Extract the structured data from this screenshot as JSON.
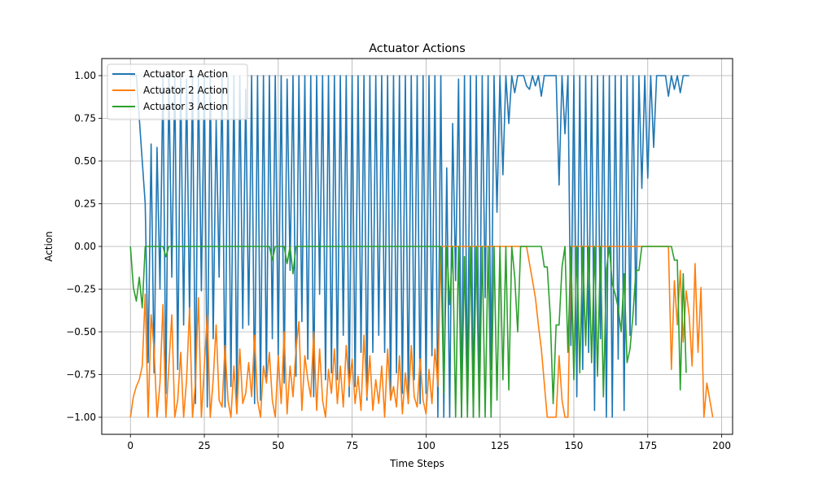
{
  "chart_data": {
    "type": "line",
    "title": "Actuator Actions",
    "xlabel": "Time Steps",
    "ylabel": "Action",
    "xlim": [
      -9.7,
      203.7
    ],
    "ylim": [
      -1.1,
      1.1
    ],
    "xticks": [
      0,
      25,
      50,
      75,
      100,
      125,
      150,
      175,
      200
    ],
    "yticks": [
      -1.0,
      -0.75,
      -0.5,
      -0.25,
      0.0,
      0.25,
      0.5,
      0.75,
      1.0
    ],
    "xtick_labels": [
      "0",
      "25",
      "50",
      "75",
      "100",
      "125",
      "150",
      "175",
      "200"
    ],
    "ytick_labels": [
      "−1.00",
      "−0.75",
      "−0.50",
      "−0.25",
      "0.00",
      "0.25",
      "0.50",
      "0.75",
      "1.00"
    ],
    "grid": true,
    "legend_position": "upper-left",
    "series": [
      {
        "name": "Actuator 1 Action",
        "color": "#1f77b4",
        "values": [
          1.0,
          1.0,
          1.0,
          0.75,
          0.5,
          0.25,
          -0.68,
          0.6,
          -0.74,
          0.58,
          -0.25,
          1.0,
          -0.86,
          1.0,
          -0.18,
          1.0,
          -0.72,
          1.0,
          -0.46,
          0.98,
          -0.42,
          1.0,
          -0.92,
          1.0,
          -0.26,
          1.0,
          -0.94,
          1.0,
          -0.54,
          0.74,
          -0.18,
          1.0,
          -0.94,
          1.0,
          -0.82,
          1.0,
          -0.94,
          1.0,
          -0.48,
          0.92,
          -0.46,
          1.0,
          -0.92,
          1.0,
          -0.9,
          1.0,
          -0.78,
          1.0,
          -0.54,
          1.0,
          -0.66,
          1.0,
          -0.8,
          0.98,
          -0.14,
          1.0,
          -0.76,
          1.0,
          -0.44,
          1.0,
          -0.66,
          1.0,
          -0.88,
          1.0,
          -0.28,
          1.0,
          -0.78,
          1.0,
          -0.74,
          1.0,
          -0.78,
          1.0,
          -0.52,
          1.0,
          -0.88,
          1.0,
          -0.82,
          1.0,
          -0.62,
          1.0,
          -0.9,
          1.0,
          -0.62,
          1.0,
          -0.52,
          1.0,
          -0.62,
          1.0,
          -0.9,
          1.0,
          -0.74,
          1.0,
          -0.86,
          1.0,
          -0.92,
          1.0,
          -0.78,
          1.0,
          -0.92,
          1.0,
          -0.86,
          1.0,
          -0.64,
          1.0,
          -1.0,
          1.0,
          -1.0,
          0.46,
          -1.0,
          0.72,
          -0.2,
          0.98,
          -1.0,
          1.0,
          -0.92,
          1.0,
          -1.0,
          1.0,
          -0.96,
          1.0,
          -0.3,
          1.0,
          -0.72,
          1.0,
          0.2,
          1.0,
          0.42,
          1.0,
          0.72,
          1.0,
          0.9,
          1.0,
          1.0,
          1.0,
          0.94,
          0.92,
          1.0,
          0.94,
          1.0,
          0.88,
          1.0,
          1.0,
          1.0,
          1.0,
          1.0,
          0.36,
          1.0,
          0.66,
          1.0,
          -0.58,
          1.0,
          -0.88,
          1.0,
          -0.72,
          1.0,
          -0.62,
          1.0,
          -0.96,
          1.0,
          -0.54,
          1.0,
          -1.0,
          1.0,
          -1.0,
          1.0,
          -0.66,
          1.0,
          -0.96,
          1.0,
          -0.52,
          1.0,
          -0.46,
          1.0,
          0.34,
          1.0,
          0.4,
          1.0,
          0.58,
          1.0,
          1.0,
          1.0,
          1.0,
          0.88,
          1.0,
          0.92,
          1.0,
          0.9,
          1.0,
          1.0,
          1.0
        ]
      },
      {
        "name": "Actuator 2 Action",
        "color": "#ff7f0e",
        "values": [
          -1.0,
          -0.88,
          -0.82,
          -0.78,
          -0.7,
          -0.28,
          -1.0,
          -0.4,
          -0.6,
          -1.0,
          -0.8,
          -0.34,
          -1.0,
          -0.7,
          -0.4,
          -1.0,
          -0.9,
          -0.62,
          -1.0,
          -0.78,
          -0.36,
          -1.0,
          -0.8,
          -0.3,
          -1.0,
          -0.7,
          -0.4,
          -1.0,
          -0.78,
          -0.46,
          -0.9,
          -0.94,
          -0.58,
          -0.9,
          -1.0,
          -0.7,
          -0.98,
          -0.6,
          -0.92,
          -0.86,
          -0.68,
          -0.88,
          -0.52,
          -0.9,
          -1.0,
          -0.7,
          -0.8,
          -0.62,
          -0.9,
          -1.0,
          -0.64,
          -0.92,
          -0.5,
          -0.98,
          -0.7,
          -0.88,
          -0.6,
          -0.44,
          -0.96,
          -0.64,
          -0.78,
          -0.88,
          -0.5,
          -0.96,
          -0.6,
          -0.9,
          -1.0,
          -0.72,
          -0.86,
          -0.6,
          -0.92,
          -0.7,
          -0.94,
          -0.58,
          -0.82,
          -0.66,
          -0.92,
          -0.76,
          -0.96,
          -0.52,
          -0.88,
          -0.64,
          -0.96,
          -0.78,
          -0.92,
          -0.7,
          -1.0,
          -0.6,
          -0.9,
          -0.82,
          -0.94,
          -0.64,
          -0.98,
          -0.74,
          -0.92,
          -0.58,
          -0.88,
          -0.94,
          -0.66,
          -0.9,
          -0.98,
          -0.72,
          -0.92,
          -0.6,
          -0.82,
          0.0,
          0.0,
          0.0,
          0.0,
          0.0,
          0.0,
          0.0,
          0.0,
          0.0,
          0.0,
          0.0,
          0.0,
          0.0,
          0.0,
          0.0,
          0.0,
          0.0,
          0.0,
          0.0,
          0.0,
          0.0,
          0.0,
          0.0,
          0.0,
          0.0,
          0.0,
          0.0,
          0.0,
          0.0,
          0.0,
          -0.1,
          -0.2,
          -0.3,
          -0.46,
          -0.6,
          -0.8,
          -1.0,
          -1.0,
          -1.0,
          -1.0,
          -0.64,
          -0.9,
          -1.0,
          -1.0,
          0.0,
          0.0,
          0.0,
          0.0,
          0.0,
          0.0,
          0.0,
          0.0,
          0.0,
          0.0,
          0.0,
          0.0,
          0.0,
          0.0,
          0.0,
          0.0,
          0.0,
          0.0,
          0.0,
          0.0,
          0.0,
          0.0,
          0.0,
          0.0,
          0.0,
          0.0,
          0.0,
          0.0,
          0.0,
          0.0,
          0.0,
          0.0,
          0.0,
          0.0,
          -0.72,
          -0.2,
          -0.46,
          -0.14,
          -0.56,
          -0.26,
          -0.4,
          -0.7,
          -0.1,
          -0.62,
          -0.24,
          -1.0,
          -0.8,
          -0.9,
          -1.0
        ]
      },
      {
        "name": "Actuator 3 Action",
        "color": "#2ca02c",
        "values": [
          0.0,
          -0.24,
          -0.32,
          -0.18,
          -0.36,
          0.0,
          0.0,
          0.0,
          0.0,
          0.0,
          0.0,
          0.0,
          -0.06,
          0.0,
          0.0,
          0.0,
          0.0,
          0.0,
          0.0,
          0.0,
          0.0,
          0.0,
          0.0,
          0.0,
          0.0,
          0.0,
          0.0,
          0.0,
          0.0,
          0.0,
          0.0,
          0.0,
          0.0,
          0.0,
          0.0,
          0.0,
          0.0,
          0.0,
          0.0,
          0.0,
          0.0,
          0.0,
          0.0,
          0.0,
          0.0,
          0.0,
          0.0,
          0.0,
          -0.08,
          0.0,
          0.0,
          0.0,
          0.0,
          -0.1,
          0.0,
          -0.16,
          0.0,
          0.0,
          0.0,
          0.0,
          0.0,
          0.0,
          0.0,
          0.0,
          0.0,
          0.0,
          0.0,
          0.0,
          0.0,
          0.0,
          0.0,
          0.0,
          0.0,
          0.0,
          0.0,
          0.0,
          0.0,
          0.0,
          0.0,
          0.0,
          0.0,
          0.0,
          0.0,
          0.0,
          0.0,
          0.0,
          0.0,
          0.0,
          0.0,
          0.0,
          0.0,
          0.0,
          0.0,
          0.0,
          0.0,
          0.0,
          0.0,
          0.0,
          0.0,
          0.0,
          0.0,
          0.0,
          0.0,
          0.0,
          0.0,
          0.0,
          -0.86,
          0.0,
          -0.34,
          0.0,
          -1.0,
          0.0,
          -1.0,
          -0.06,
          -1.0,
          0.0,
          -1.0,
          0.0,
          -1.0,
          0.0,
          -1.0,
          0.0,
          -1.0,
          0.0,
          -0.9,
          0.0,
          -0.78,
          0.0,
          -0.84,
          0.0,
          -0.18,
          -0.5,
          0.0,
          0.0,
          0.0,
          0.0,
          0.0,
          0.0,
          0.0,
          0.0,
          -0.12,
          -0.12,
          -0.4,
          -0.92,
          -0.46,
          -0.46,
          -0.12,
          0.0,
          -0.62,
          0.0,
          -0.78,
          0.0,
          -0.74,
          0.0,
          -0.58,
          0.0,
          -0.68,
          0.0,
          -0.76,
          0.0,
          -0.88,
          -0.14,
          0.0,
          -0.22,
          -0.28,
          -0.36,
          -0.5,
          -0.16,
          -0.68,
          -0.6,
          -0.4,
          -0.14,
          -0.14,
          0.0,
          0.0,
          0.0,
          0.0,
          0.0,
          0.0,
          0.0,
          0.0,
          0.0,
          0.0,
          0.0,
          -0.08,
          -0.08,
          -0.84,
          -0.16,
          -0.74
        ]
      }
    ]
  }
}
